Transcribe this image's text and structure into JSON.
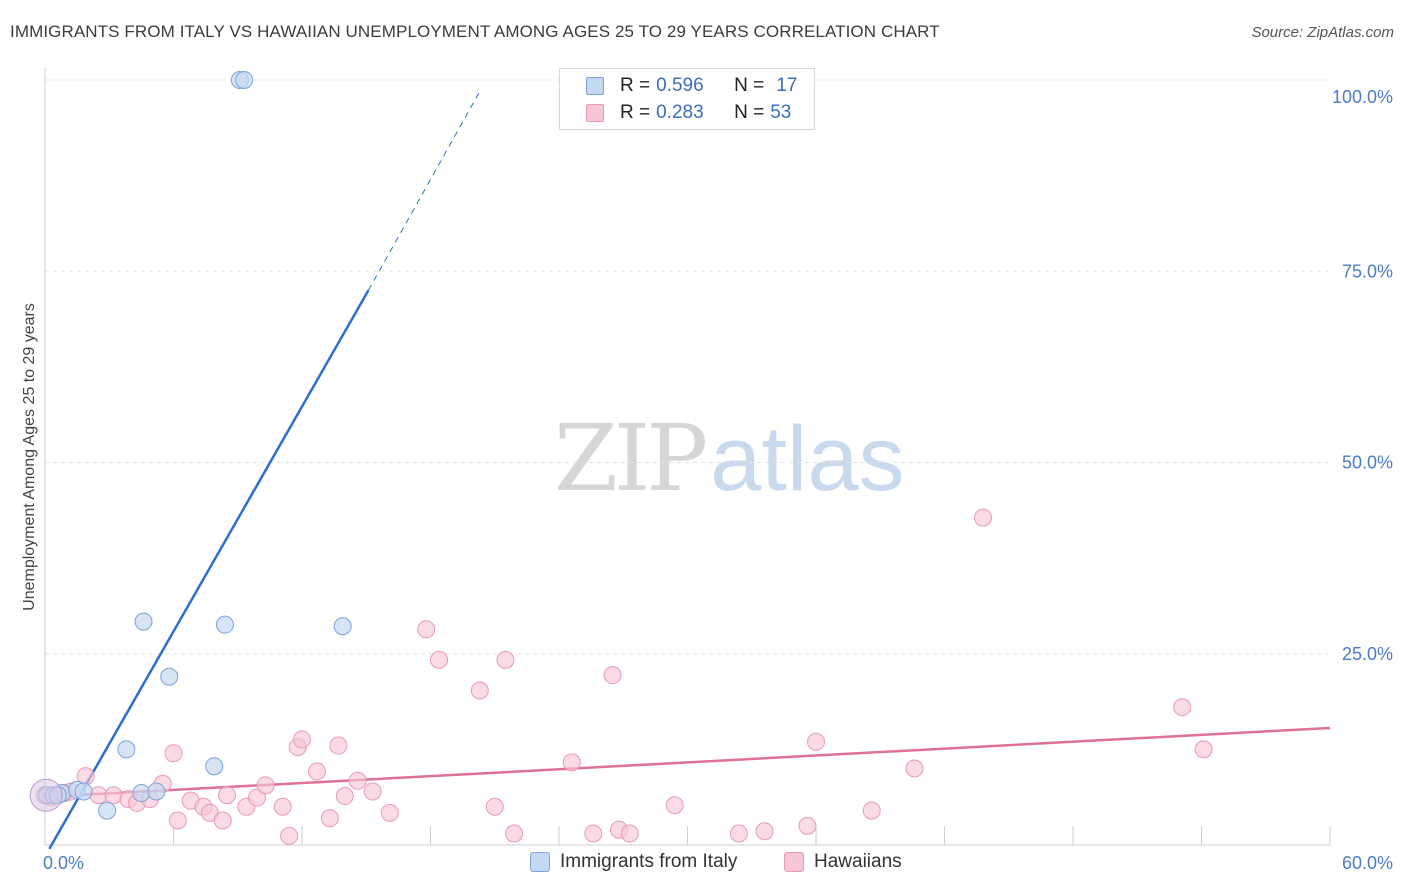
{
  "header": {
    "title": "IMMIGRANTS FROM ITALY VS HAWAIIAN UNEMPLOYMENT AMONG AGES 25 TO 29 YEARS CORRELATION CHART",
    "source": "Source: ZipAtlas.com"
  },
  "watermark": {
    "zip": "ZIP",
    "atlas": "atlas"
  },
  "legend": {
    "italy": {
      "r_label": "R =",
      "r_value": "0.596",
      "n_label": "N =",
      "n_value": "17"
    },
    "hawaiians": {
      "r_label": "R =",
      "r_value": "0.283",
      "n_label": "N =",
      "n_value": "53"
    }
  },
  "bottom_legend": {
    "italy": "Immigrants from Italy",
    "hawaiians": "Hawaiians"
  },
  "colors": {
    "italy_fill": "#c4d8f2",
    "italy_stroke": "#7aa3dc",
    "italy_line": "#2d6fcf",
    "hawaiians_fill": "#f7c6d6",
    "hawaiians_stroke": "#e99ab5",
    "hawaiians_line": "#e0709a",
    "grid": "#e3e3e3",
    "axis_text": "#4a7cc9"
  },
  "chart_data": {
    "type": "scatter",
    "title": "IMMIGRANTS FROM ITALY VS HAWAIIAN UNEMPLOYMENT AMONG AGES 25 TO 29 YEARS CORRELATION CHART",
    "xlabel": "",
    "ylabel": "Unemployment Among Ages 25 to 29 years",
    "xlim": [
      0,
      60
    ],
    "ylim": [
      0,
      100
    ],
    "x_tick_labels": [
      {
        "value": 0,
        "label": "0.0%"
      },
      {
        "value": 60,
        "label": "60.0%"
      }
    ],
    "y_tick_labels": [
      {
        "value": 25,
        "label": "25.0%"
      },
      {
        "value": 50,
        "label": "50.0%"
      },
      {
        "value": 75,
        "label": "75.0%"
      },
      {
        "value": 100,
        "label": "100.0%"
      }
    ],
    "series": [
      {
        "name": "Immigrants from Italy",
        "points": [
          [
            0.1,
            6.5
          ],
          [
            0.4,
            6.5
          ],
          [
            0.8,
            6.8
          ],
          [
            1.5,
            7.2
          ],
          [
            1.8,
            7.0
          ],
          [
            2.9,
            4.5
          ],
          [
            3.8,
            12.5
          ],
          [
            4.5,
            6.8
          ],
          [
            5.2,
            7.0
          ],
          [
            4.6,
            29.2
          ],
          [
            5.8,
            22.0
          ],
          [
            7.9,
            10.3
          ],
          [
            8.4,
            28.8
          ],
          [
            13.9,
            28.6
          ],
          [
            9.1,
            100
          ],
          [
            9.3,
            100
          ],
          [
            0.6,
            6.5
          ]
        ],
        "trend": {
          "solid": [
            [
              0.2,
              -0.5
            ],
            [
              15.1,
              72.5
            ]
          ],
          "dashed": [
            [
              15.1,
              72.5
            ],
            [
              20.3,
              98.5
            ]
          ]
        }
      },
      {
        "name": "Hawaiians",
        "points": [
          [
            0.0,
            6.5
          ],
          [
            0.9,
            6.8
          ],
          [
            1.2,
            7.0
          ],
          [
            1.9,
            9.0
          ],
          [
            2.5,
            6.5
          ],
          [
            3.2,
            6.5
          ],
          [
            3.9,
            6.0
          ],
          [
            4.3,
            5.5
          ],
          [
            4.9,
            6.0
          ],
          [
            5.5,
            8.0
          ],
          [
            6.0,
            12.0
          ],
          [
            6.2,
            3.2
          ],
          [
            6.8,
            5.8
          ],
          [
            7.4,
            5.0
          ],
          [
            7.7,
            4.2
          ],
          [
            8.3,
            3.2
          ],
          [
            8.5,
            6.5
          ],
          [
            9.4,
            5.0
          ],
          [
            9.9,
            6.2
          ],
          [
            10.3,
            7.8
          ],
          [
            11.1,
            5.0
          ],
          [
            11.4,
            1.2
          ],
          [
            11.8,
            12.8
          ],
          [
            12.0,
            13.8
          ],
          [
            12.7,
            9.6
          ],
          [
            13.3,
            3.5
          ],
          [
            13.7,
            13.0
          ],
          [
            14.0,
            6.4
          ],
          [
            14.6,
            8.4
          ],
          [
            15.3,
            7.0
          ],
          [
            16.1,
            4.2
          ],
          [
            17.8,
            28.2
          ],
          [
            18.4,
            24.2
          ],
          [
            20.3,
            20.2
          ],
          [
            21.0,
            5.0
          ],
          [
            21.5,
            24.2
          ],
          [
            21.9,
            1.5
          ],
          [
            24.6,
            10.8
          ],
          [
            25.6,
            1.5
          ],
          [
            26.5,
            22.2
          ],
          [
            26.8,
            2.0
          ],
          [
            27.3,
            1.5
          ],
          [
            29.4,
            5.2
          ],
          [
            32.4,
            1.5
          ],
          [
            33.6,
            1.8
          ],
          [
            35.6,
            2.5
          ],
          [
            36.0,
            13.5
          ],
          [
            38.6,
            4.5
          ],
          [
            40.6,
            10.0
          ],
          [
            43.8,
            42.8
          ],
          [
            53.1,
            18.0
          ],
          [
            54.1,
            12.5
          ],
          [
            0.3,
            6.2
          ]
        ],
        "trend": {
          "solid": [
            [
              0.0,
              6.3
            ],
            [
              60.0,
              15.3
            ]
          ]
        }
      }
    ]
  }
}
